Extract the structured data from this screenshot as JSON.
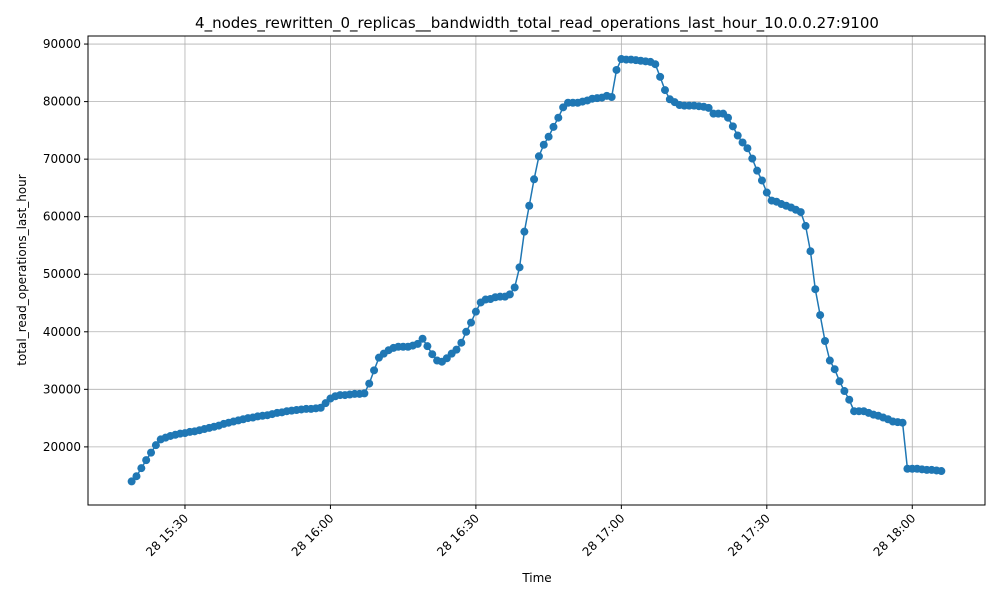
{
  "chart_data": {
    "type": "line",
    "title": "4_nodes_rewritten_0_replicas__bandwidth_total_read_operations_last_hour_10.0.0.27:9100",
    "x_label": "Time",
    "y_label": "total_read_operations_last_hour",
    "color": "#1f77b4",
    "grid": true,
    "markers": true,
    "xlim": [
      "28 15:10",
      "28 18:15"
    ],
    "xticks": [
      "28 15:30",
      "28 16:00",
      "28 16:30",
      "28 17:00",
      "28 17:30",
      "28 18:00"
    ],
    "ylim": [
      9900,
      91400
    ],
    "yticks": [
      20000,
      30000,
      40000,
      50000,
      60000,
      70000,
      80000,
      90000
    ],
    "x": [
      "28 15:19",
      "28 15:20",
      "28 15:21",
      "28 15:22",
      "28 15:23",
      "28 15:24",
      "28 15:25",
      "28 15:26",
      "28 15:27",
      "28 15:28",
      "28 15:29",
      "28 15:30",
      "28 15:31",
      "28 15:32",
      "28 15:33",
      "28 15:34",
      "28 15:35",
      "28 15:36",
      "28 15:37",
      "28 15:38",
      "28 15:39",
      "28 15:40",
      "28 15:41",
      "28 15:42",
      "28 15:43",
      "28 15:44",
      "28 15:45",
      "28 15:46",
      "28 15:47",
      "28 15:48",
      "28 15:49",
      "28 15:50",
      "28 15:51",
      "28 15:52",
      "28 15:53",
      "28 15:54",
      "28 15:55",
      "28 15:56",
      "28 15:57",
      "28 15:58",
      "28 15:59",
      "28 16:00",
      "28 16:01",
      "28 16:02",
      "28 16:03",
      "28 16:04",
      "28 16:05",
      "28 16:06",
      "28 16:07",
      "28 16:08",
      "28 16:09",
      "28 16:10",
      "28 16:11",
      "28 16:12",
      "28 16:13",
      "28 16:14",
      "28 16:15",
      "28 16:16",
      "28 16:17",
      "28 16:18",
      "28 16:19",
      "28 16:20",
      "28 16:21",
      "28 16:22",
      "28 16:23",
      "28 16:24",
      "28 16:25",
      "28 16:26",
      "28 16:27",
      "28 16:28",
      "28 16:29",
      "28 16:30",
      "28 16:31",
      "28 16:32",
      "28 16:33",
      "28 16:34",
      "28 16:35",
      "28 16:36",
      "28 16:37",
      "28 16:38",
      "28 16:39",
      "28 16:40",
      "28 16:41",
      "28 16:42",
      "28 16:43",
      "28 16:44",
      "28 16:45",
      "28 16:46",
      "28 16:47",
      "28 16:48",
      "28 16:49",
      "28 16:50",
      "28 16:51",
      "28 16:52",
      "28 16:53",
      "28 16:54",
      "28 16:55",
      "28 16:56",
      "28 16:57",
      "28 16:58",
      "28 16:59",
      "28 17:00",
      "28 17:01",
      "28 17:02",
      "28 17:03",
      "28 17:04",
      "28 17:05",
      "28 17:06",
      "28 17:07",
      "28 17:08",
      "28 17:09",
      "28 17:10",
      "28 17:11",
      "28 17:12",
      "28 17:13",
      "28 17:14",
      "28 17:15",
      "28 17:16",
      "28 17:17",
      "28 17:18",
      "28 17:19",
      "28 17:20",
      "28 17:21",
      "28 17:22",
      "28 17:23",
      "28 17:24",
      "28 17:25",
      "28 17:26",
      "28 17:27",
      "28 17:28",
      "28 17:29",
      "28 17:30",
      "28 17:31",
      "28 17:32",
      "28 17:33",
      "28 17:34",
      "28 17:35",
      "28 17:36",
      "28 17:37",
      "28 17:38",
      "28 17:39",
      "28 17:40",
      "28 17:41",
      "28 17:42",
      "28 17:43",
      "28 17:44",
      "28 17:45",
      "28 17:46",
      "28 17:47",
      "28 17:48",
      "28 17:49",
      "28 17:50",
      "28 17:51",
      "28 17:52",
      "28 17:53",
      "28 17:54",
      "28 17:55",
      "28 17:56",
      "28 17:57",
      "28 17:58",
      "28 17:59",
      "28 18:00",
      "28 18:01",
      "28 18:02",
      "28 18:03",
      "28 18:04",
      "28 18:05",
      "28 18:06"
    ],
    "values": [
      14000,
      14900,
      16300,
      17700,
      19000,
      20300,
      21300,
      21600,
      21900,
      22100,
      22300,
      22400,
      22600,
      22700,
      22900,
      23100,
      23300,
      23500,
      23700,
      24000,
      24200,
      24400,
      24600,
      24800,
      25000,
      25100,
      25300,
      25400,
      25500,
      25700,
      25900,
      26000,
      26200,
      26300,
      26400,
      26500,
      26600,
      26600,
      26700,
      26800,
      27600,
      28400,
      28800,
      29000,
      29000,
      29100,
      29200,
      29200,
      29300,
      31000,
      33300,
      35500,
      36200,
      36800,
      37200,
      37400,
      37400,
      37400,
      37600,
      37900,
      38800,
      37500,
      36100,
      35000,
      34800,
      35400,
      36200,
      36900,
      38100,
      40000,
      41600,
      43500,
      45100,
      45600,
      45700,
      46000,
      46100,
      46100,
      46500,
      47700,
      51200,
      57400,
      61900,
      66500,
      70500,
      72500,
      73900,
      75600,
      77200,
      79000,
      79800,
      79800,
      79800,
      80000,
      80200,
      80500,
      80600,
      80700,
      81000,
      80800,
      85500,
      87400,
      87300,
      87300,
      87200,
      87100,
      87000,
      86900,
      86500,
      84300,
      82000,
      80400,
      79900,
      79400,
      79300,
      79300,
      79300,
      79200,
      79100,
      78900,
      77900,
      77900,
      77900,
      77200,
      75700,
      74100,
      72900,
      71900,
      70100,
      68000,
      66300,
      64200,
      62800,
      62600,
      62200,
      61900,
      61600,
      61200,
      60800,
      58400,
      54000,
      47400,
      42900,
      38400,
      35000,
      33500,
      31400,
      29700,
      28200,
      26200,
      26200,
      26200,
      25900,
      25600,
      25400,
      25100,
      24800,
      24400,
      24300,
      24200,
      16200,
      16200,
      16200,
      16100,
      16000,
      16000,
      15900,
      15800
    ]
  }
}
